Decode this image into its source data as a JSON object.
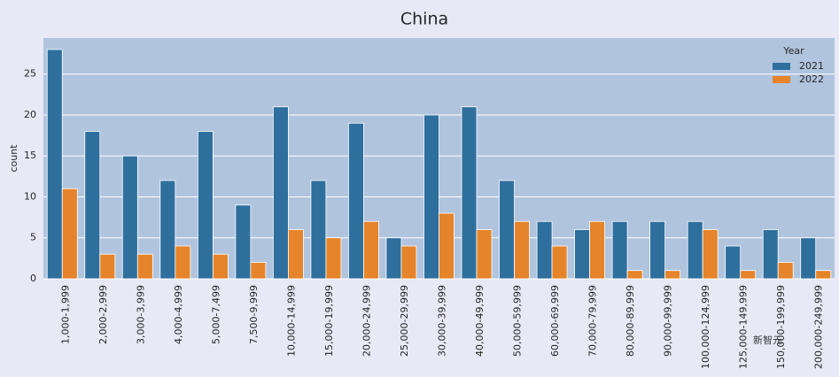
{
  "chart_data": {
    "type": "bar",
    "title": "China",
    "ylabel": "count",
    "categories": [
      "1,000-1,999",
      "2,000-2,999",
      "3,000-3,999",
      "4,000-4,999",
      "5,000-7,499",
      "7,500-9,999",
      "10,000-14,999",
      "15,000-19,999",
      "20,000-24,999",
      "25,000-29,999",
      "30,000-39,999",
      "40,000-49,999",
      "50,000-59,999",
      "60,000-69,999",
      "70,000-79,999",
      "80,000-89,999",
      "90,000-99,999",
      "100,000-124,999",
      "125,000-149,999",
      "150,000-199,999",
      "200,000-249,999"
    ],
    "series": [
      {
        "name": "2021",
        "color": "#2e6f9e",
        "values": [
          28,
          18,
          15,
          12,
          18,
          9,
          21,
          12,
          19,
          5,
          20,
          21,
          12,
          7,
          6,
          7,
          7,
          7,
          4,
          6,
          5
        ]
      },
      {
        "name": "2022",
        "color": "#e5842a",
        "values": [
          11,
          3,
          3,
          4,
          3,
          2,
          6,
          5,
          7,
          4,
          8,
          6,
          7,
          4,
          7,
          1,
          1,
          6,
          1,
          2,
          1
        ]
      }
    ],
    "legend_title": "Year",
    "legend": "upper right",
    "ylim": [
      0,
      29.4
    ],
    "yticks": [
      0,
      5,
      10,
      15,
      20,
      25
    ],
    "grid": true,
    "watermark": "新智元"
  }
}
